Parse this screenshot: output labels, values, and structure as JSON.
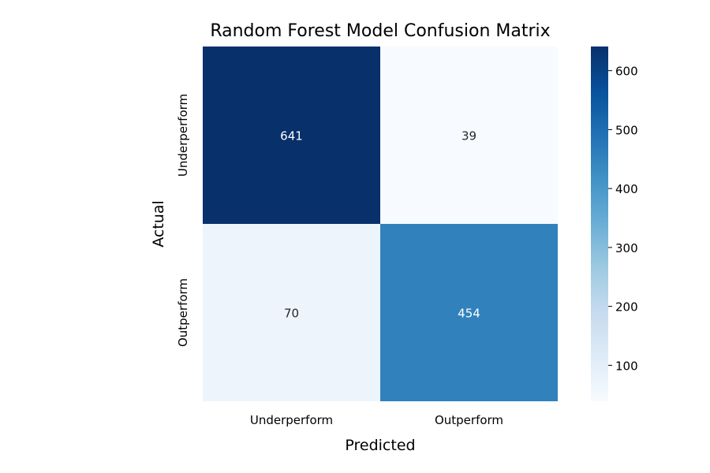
{
  "chart_data": {
    "type": "heatmap",
    "title": "Random Forest Model Confusion Matrix",
    "xlabel": "Predicted",
    "ylabel": "Actual",
    "x_categories": [
      "Underperform",
      "Outperform"
    ],
    "y_categories": [
      "Underperform",
      "Outperform"
    ],
    "values": [
      [
        641,
        39
      ],
      [
        70,
        454
      ]
    ],
    "colormap": "Blues",
    "colorbar": {
      "range": [
        39,
        641
      ],
      "ticks": [
        100,
        200,
        300,
        400,
        500,
        600
      ]
    }
  }
}
